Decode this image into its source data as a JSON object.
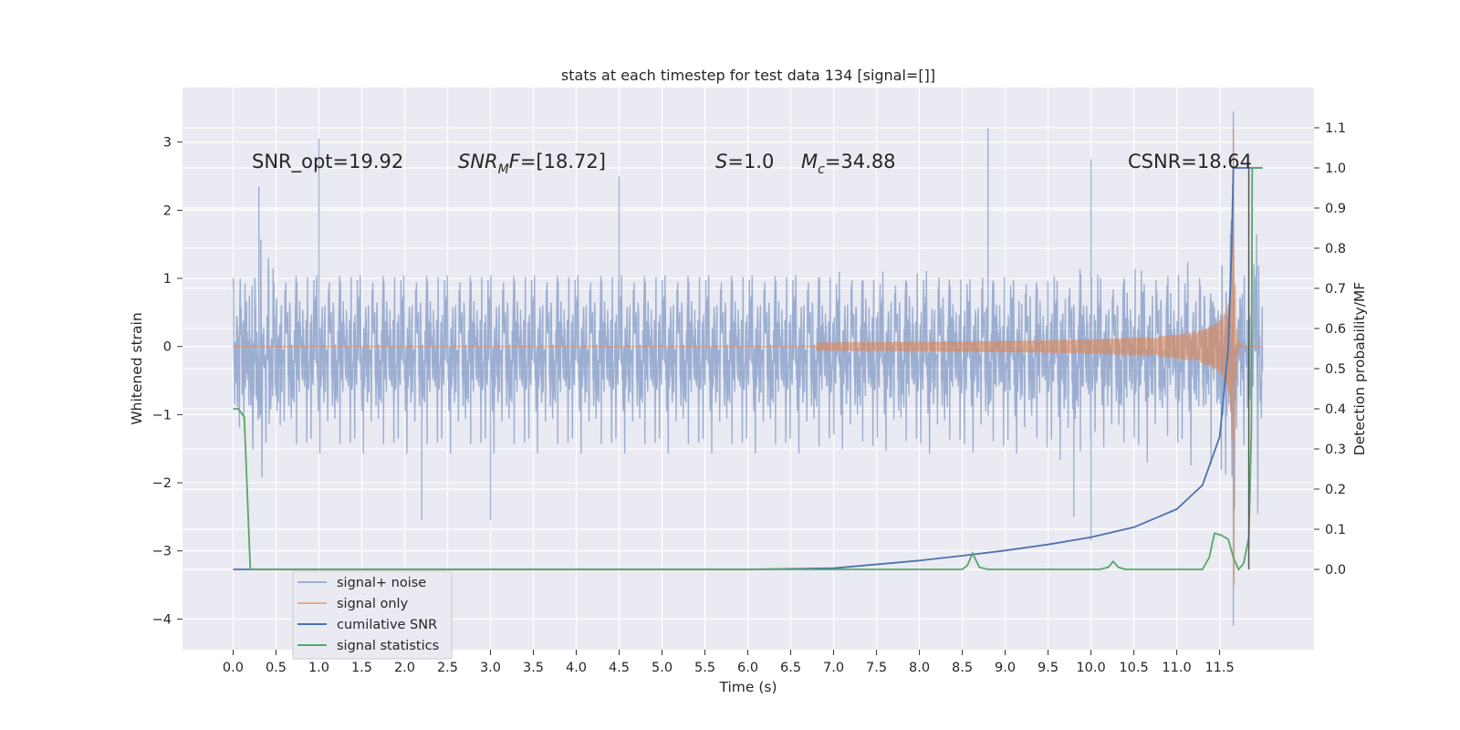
{
  "chart_data": {
    "type": "line",
    "title": "stats at each timestep for test data 134 [signal=[]]",
    "xlabel": "Time (s)",
    "ylabel_left": "Whitened strain",
    "ylabel_right": "Detection probability/MF",
    "xlim": [
      -0.59,
      12.6
    ],
    "ylim_left": [
      -4.45,
      3.8
    ],
    "ylim_right": [
      -0.2,
      1.2
    ],
    "x_ticks": [
      0.0,
      0.5,
      1.0,
      1.5,
      2.0,
      2.5,
      3.0,
      3.5,
      4.0,
      4.5,
      5.0,
      5.5,
      6.0,
      6.5,
      7.0,
      7.5,
      8.0,
      8.5,
      9.0,
      9.5,
      10.0,
      10.5,
      11.0,
      11.5
    ],
    "x_tick_labels": [
      "0.0",
      "0.5",
      "1.0",
      "1.5",
      "2.0",
      "2.5",
      "3.0",
      "3.5",
      "4.0",
      "4.5",
      "5.0",
      "5.5",
      "6.0",
      "6.5",
      "7.0",
      "7.5",
      "8.0",
      "8.5",
      "9.0",
      "9.5",
      "10.0",
      "10.5",
      "11.0",
      "11.5"
    ],
    "y_left_ticks": [
      3,
      2,
      1,
      0,
      -1,
      -2,
      -3,
      -4
    ],
    "y_left_tick_labels": [
      "3",
      "2",
      "1",
      "0",
      "−1",
      "−2",
      "−3",
      "−4"
    ],
    "y_right_ticks": [
      1.1,
      1.0,
      0.9,
      0.8,
      0.7,
      0.6,
      0.5,
      0.4,
      0.3,
      0.2,
      0.1,
      0.0
    ],
    "y_right_tick_labels": [
      "1.1",
      "1.0",
      "0.9",
      "0.8",
      "0.7",
      "0.6",
      "0.5",
      "0.4",
      "0.3",
      "0.2",
      "0.1",
      "0.0"
    ],
    "grid": true,
    "legend_position": "lower-left",
    "annotations": [
      {
        "text": "SNR_opt=19.92",
        "x": 0.2,
        "y": 2.7
      },
      {
        "text": "SNR_MF=[18.72]",
        "x": 2.6,
        "y": 2.7
      },
      {
        "text": "S=1.0",
        "x": 5.6,
        "y": 2.7
      },
      {
        "text": "M_c=34.88",
        "x": 6.6,
        "y": 2.7
      },
      {
        "text": "CSNR=18.64",
        "x": 10.3,
        "y": 2.7
      }
    ],
    "series": [
      {
        "name": "signal+ noise",
        "axis": "left",
        "color": "#4c72b0",
        "alpha": 0.5,
        "x_range": [
          0.0,
          12.0
        ],
        "typical_band": [
          -1.3,
          1.3
        ],
        "peaks": [
          {
            "x": 1.0,
            "y": 3.05
          },
          {
            "x": 8.8,
            "y": 3.2
          },
          {
            "x": 11.66,
            "y": 3.45
          },
          {
            "x": 11.66,
            "y": -4.1
          },
          {
            "x": 10.0,
            "y": -2.85
          },
          {
            "x": 3.0,
            "y": -2.55
          },
          {
            "x": 2.2,
            "y": -2.55
          },
          {
            "x": 9.8,
            "y": -2.5
          },
          {
            "x": 0.3,
            "y": 2.35
          },
          {
            "x": 4.5,
            "y": 2.5
          },
          {
            "x": 10.0,
            "y": 2.75
          }
        ]
      },
      {
        "name": "signal only",
        "axis": "left",
        "color": "#dd8452",
        "alpha": 0.6,
        "chirp_start": 6.8,
        "merger_time": 11.66,
        "peak_amplitude": 3.2,
        "min_amplitude": -3.5
      },
      {
        "name": "cumilative SNR",
        "axis": "right",
        "color": "#4c72b0",
        "x": [
          0.0,
          6.0,
          7.0,
          8.0,
          8.5,
          9.0,
          9.5,
          10.0,
          10.5,
          11.0,
          11.3,
          11.5,
          11.6,
          11.64,
          11.66,
          11.8,
          11.9,
          12.0
        ],
        "values": [
          0.0,
          0.0,
          0.003,
          0.022,
          0.034,
          0.047,
          0.062,
          0.08,
          0.105,
          0.15,
          0.21,
          0.33,
          0.55,
          0.8,
          1.0,
          1.0,
          1.0,
          1.0
        ]
      },
      {
        "name": "signal statistics",
        "axis": "right",
        "color": "#55a868",
        "x": [
          0.0,
          0.06,
          0.13,
          0.2,
          8.5,
          8.56,
          8.62,
          8.7,
          8.8,
          9.0,
          10.1,
          10.2,
          10.26,
          10.32,
          10.4,
          11.3,
          11.38,
          11.44,
          11.52,
          11.6,
          11.66,
          11.72,
          11.78,
          11.84,
          11.87,
          11.88,
          11.89,
          12.0
        ],
        "values": [
          0.4,
          0.4,
          0.38,
          0.0,
          0.0,
          0.01,
          0.04,
          0.005,
          0.0,
          0.0,
          0.0,
          0.005,
          0.02,
          0.005,
          0.0,
          0.0,
          0.03,
          0.09,
          0.085,
          0.075,
          0.03,
          0.0,
          0.015,
          0.08,
          0.35,
          1.0,
          1.0,
          1.0
        ]
      }
    ],
    "extra_lines": [
      {
        "color": "#555555",
        "x": 11.84,
        "y_right": [
          0.0,
          1.0
        ]
      }
    ]
  }
}
